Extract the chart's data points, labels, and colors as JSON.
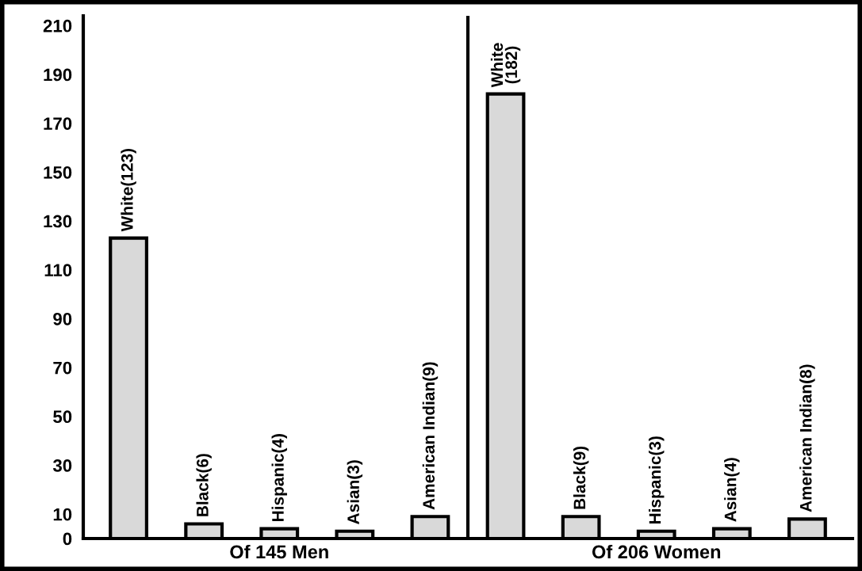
{
  "chart_data": {
    "type": "bar",
    "categories": [
      null,
      null,
      null,
      null,
      null,
      null,
      null,
      null,
      null,
      null
    ],
    "values": [
      123,
      6,
      4,
      3,
      9,
      182,
      9,
      3,
      4,
      8
    ],
    "value_labels": [
      "White(123)",
      "Black(6)",
      "Hispanic(4)",
      "Asian(3)",
      "American Indian(9)",
      "White\n(182)",
      "Black(9)",
      "Hispanic(3)",
      "Asian(4)",
      "American Indian(8)"
    ],
    "color": "#d9d9d9",
    "ylim": [
      0,
      214
    ],
    "yticks": [
      0,
      10,
      30,
      50,
      70,
      90,
      110,
      130,
      150,
      170,
      190,
      210
    ],
    "tick_labels": "y",
    "annotations": [
      "Of 145 Men",
      "Of 206 Women"
    ]
  }
}
